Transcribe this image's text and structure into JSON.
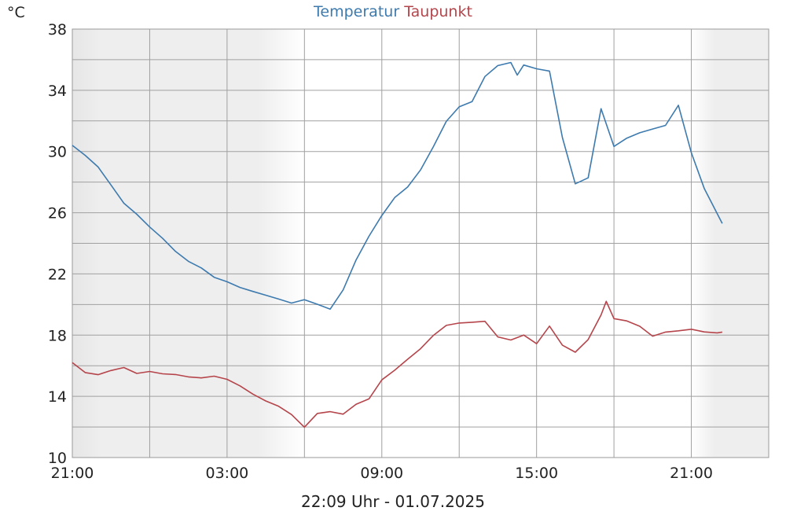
{
  "chart_data": {
    "type": "line",
    "unit": "°C",
    "title": "",
    "x_ticks": [
      "21:00",
      "03:00",
      "09:00",
      "15:00",
      "21:00"
    ],
    "x_tick_hours": [
      0,
      6,
      12,
      18,
      24
    ],
    "x_range_hours": [
      0,
      27
    ],
    "ylim": [
      10,
      38
    ],
    "y_ticks": [
      10,
      14,
      18,
      22,
      26,
      30,
      34,
      38
    ],
    "grid": true,
    "night_shading": [
      {
        "from_hour": 0,
        "to_hour": 9
      },
      {
        "from_hour": 24,
        "to_hour": 27
      }
    ],
    "timestamp": "22:09 Uhr - 01.07.2025",
    "series": [
      {
        "name": "Temperatur",
        "color": "#3d7aae",
        "x_hours": [
          0,
          0.5,
          1,
          1.5,
          2,
          2.5,
          3,
          3.5,
          4,
          4.5,
          5,
          5.5,
          6,
          6.5,
          7,
          7.5,
          8,
          8.5,
          9,
          9.5,
          10,
          10.5,
          11,
          11.5,
          12,
          12.5,
          13,
          13.5,
          14,
          14.5,
          15,
          15.5,
          16,
          16.5,
          17,
          17.25,
          17.5,
          18,
          18.5,
          19,
          19.5,
          20,
          20.5,
          21,
          21.5,
          22,
          22.5,
          23,
          23.5,
          24,
          24.5,
          25,
          25.2
        ],
        "values": [
          30.4,
          29.7,
          28.9,
          27.7,
          26.5,
          25.8,
          25.0,
          24.3,
          23.5,
          22.9,
          22.5,
          21.9,
          21.6,
          21.2,
          20.9,
          20.6,
          20.3,
          20.0,
          20.2,
          19.9,
          19.6,
          20.9,
          22.9,
          24.5,
          25.9,
          27.1,
          27.8,
          28.9,
          30.4,
          32.0,
          32.9,
          33.2,
          34.8,
          35.5,
          35.7,
          34.9,
          35.6,
          35.4,
          35.3,
          31.0,
          28.0,
          28.4,
          32.9,
          30.4,
          30.9,
          31.2,
          31.4,
          31.6,
          32.9,
          29.8,
          27.5,
          25.9,
          25.3
        ]
      },
      {
        "name": "Taupunkt",
        "color": "#b5454b",
        "x_hours": [
          0,
          0.5,
          1,
          1.5,
          2,
          2.5,
          3,
          3.5,
          4,
          4.5,
          5,
          5.5,
          6,
          6.5,
          7,
          7.5,
          8,
          8.5,
          9,
          9.5,
          10,
          10.5,
          11,
          11.5,
          12,
          12.5,
          13,
          13.5,
          14,
          14.5,
          15,
          15.5,
          16,
          16.5,
          17,
          17.5,
          18,
          18.5,
          19,
          19.5,
          20,
          20.5,
          20.7,
          21,
          21.5,
          22,
          22.5,
          23,
          23.5,
          24,
          24.5,
          25,
          25.2
        ],
        "values": [
          16.2,
          15.6,
          15.5,
          15.8,
          16.0,
          15.6,
          15.7,
          15.5,
          15.4,
          15.2,
          15.1,
          15.2,
          15.0,
          14.6,
          14.1,
          13.7,
          13.4,
          12.9,
          12.1,
          13.0,
          13.1,
          12.9,
          13.5,
          13.8,
          15.0,
          15.6,
          16.3,
          17.0,
          17.9,
          18.6,
          18.8,
          18.9,
          19.0,
          18.0,
          17.8,
          18.1,
          17.5,
          18.6,
          17.3,
          16.8,
          17.6,
          19.2,
          20.1,
          19.0,
          18.9,
          18.6,
          18.0,
          18.3,
          18.4,
          18.5,
          18.3,
          18.2,
          18.2
        ]
      }
    ]
  }
}
